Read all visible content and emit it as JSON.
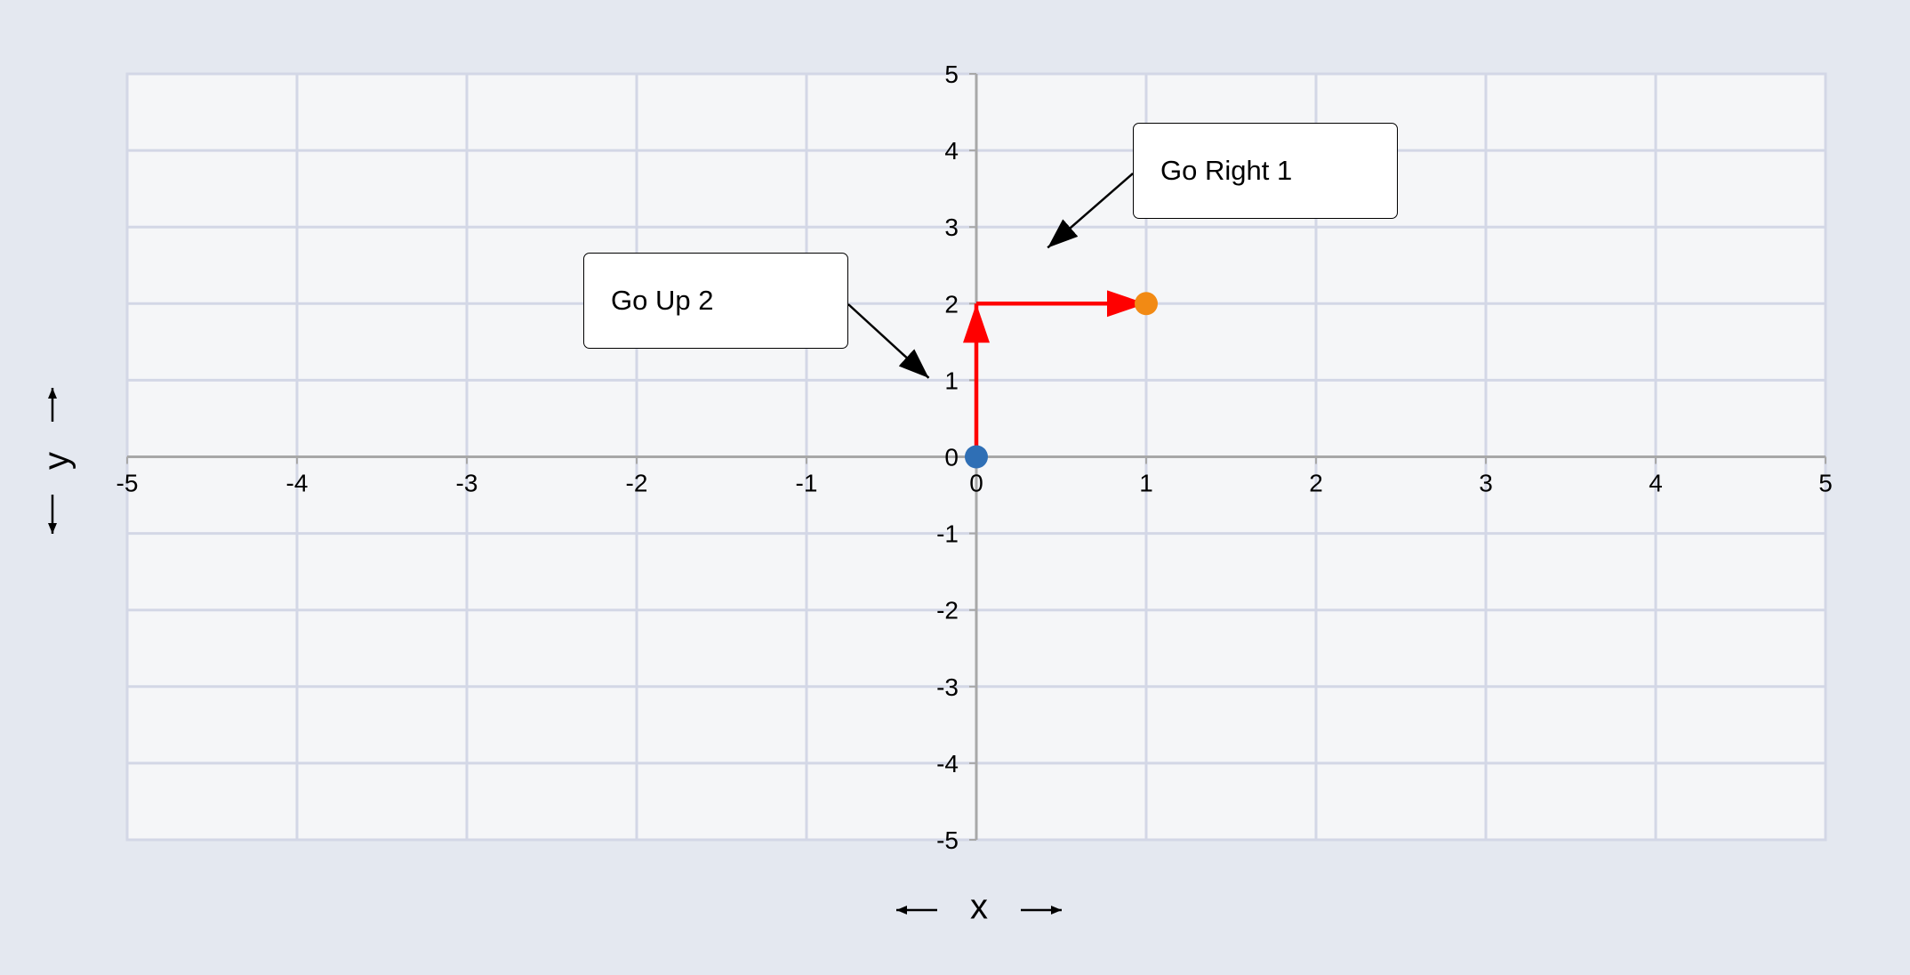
{
  "chart_data": {
    "type": "scatter",
    "xlabel": "x",
    "ylabel": "y",
    "xlim": [
      -5,
      5
    ],
    "ylim": [
      -5,
      5
    ],
    "x_ticks": [
      -5,
      -4,
      -3,
      -2,
      -1,
      0,
      1,
      2,
      3,
      4,
      5
    ],
    "y_ticks": [
      -5,
      -4,
      -3,
      -2,
      -1,
      0,
      1,
      2,
      3,
      4,
      5
    ],
    "grid": true,
    "points": [
      {
        "x": 0,
        "y": 0,
        "color": "#2f6fb5"
      },
      {
        "x": 1,
        "y": 2,
        "color": "#f28a14"
      }
    ],
    "path_arrows": [
      {
        "from": [
          0,
          0
        ],
        "to": [
          0,
          2
        ],
        "color": "#ff0000"
      },
      {
        "from": [
          0,
          2
        ],
        "to": [
          1,
          2
        ],
        "color": "#ff0000"
      }
    ],
    "annotations": [
      {
        "text": "Go Up 2",
        "target": [
          -0.28,
          1.03
        ]
      },
      {
        "text": "Go Right 1",
        "target": [
          0.42,
          2.73
        ]
      }
    ]
  },
  "colors": {
    "page_background": "#e4e8f0",
    "plot_background": "#f5f6f8",
    "grid": "#d3d7e6",
    "axis": "#a8a8a8",
    "path": "#ff0000"
  }
}
